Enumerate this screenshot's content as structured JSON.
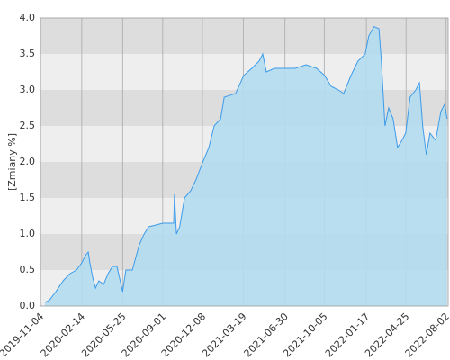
{
  "chart_data": {
    "type": "area",
    "y_label": "[Zmiany %]",
    "x": [
      "2019-11-15",
      "2019-11-26",
      "2019-12-12",
      "2019-12-30",
      "2020-01-16",
      "2020-02-01",
      "2020-02-14",
      "2020-02-23",
      "2020-03-01",
      "2020-03-05",
      "2020-03-12",
      "2020-03-19",
      "2020-03-27",
      "2020-04-08",
      "2020-04-19",
      "2020-04-30",
      "2020-05-11",
      "2020-05-25",
      "2020-06-02",
      "2020-06-18",
      "2020-07-05",
      "2020-07-17",
      "2020-07-28",
      "2020-08-12",
      "2020-09-01",
      "2020-09-28",
      "2020-09-30",
      "2020-10-05",
      "2020-10-13",
      "2020-10-25",
      "2020-11-09",
      "2020-11-22",
      "2020-12-09",
      "2020-12-24",
      "2021-01-06",
      "2021-01-22",
      "2021-01-31",
      "2021-02-28",
      "2021-03-20",
      "2021-04-09",
      "2021-04-27",
      "2021-05-06",
      "2021-05-15",
      "2021-06-04",
      "2021-06-29",
      "2021-07-25",
      "2021-08-21",
      "2021-09-16",
      "2021-10-06",
      "2021-10-22",
      "2021-11-09",
      "2021-11-22",
      "2021-12-10",
      "2021-12-27",
      "2022-01-14",
      "2022-01-23",
      "2022-02-05",
      "2022-02-17",
      "2022-02-23",
      "2022-03-04",
      "2022-03-13",
      "2022-03-24",
      "2022-04-04",
      "2022-04-15",
      "2022-04-24",
      "2022-05-05",
      "2022-05-19",
      "2022-05-28",
      "2022-06-05",
      "2022-06-14",
      "2022-06-23",
      "2022-07-07",
      "2022-07-20",
      "2022-07-29",
      "2022-08-04"
    ],
    "values": [
      0.05,
      0.08,
      0.2,
      0.35,
      0.45,
      0.5,
      0.6,
      0.7,
      0.75,
      0.6,
      0.4,
      0.25,
      0.35,
      0.3,
      0.45,
      0.55,
      0.55,
      0.2,
      0.5,
      0.5,
      0.85,
      1.0,
      1.1,
      1.12,
      1.15,
      1.15,
      1.55,
      1.0,
      1.1,
      1.5,
      1.6,
      1.75,
      2.0,
      2.2,
      2.5,
      2.6,
      2.9,
      2.95,
      3.2,
      3.3,
      3.4,
      3.5,
      3.25,
      3.3,
      3.3,
      3.3,
      3.35,
      3.3,
      3.2,
      3.05,
      3.0,
      2.95,
      3.2,
      3.4,
      3.5,
      3.75,
      3.88,
      3.85,
      3.4,
      2.5,
      2.75,
      2.6,
      2.2,
      2.3,
      2.4,
      2.9,
      3.0,
      3.1,
      2.5,
      2.1,
      2.4,
      2.3,
      2.7,
      2.8,
      2.6
    ],
    "color": "#3d9be9",
    "area_color": "#b3dcef",
    "xlim": [
      "2019-11-04",
      "2022-08-07"
    ],
    "xticks": [
      "2019-11-04",
      "2020-02-14",
      "2020-05-25",
      "2020-09-01",
      "2020-12-08",
      "2021-03-19",
      "2021-06-30",
      "2021-10-05",
      "2022-01-17",
      "2022-04-25",
      "2022-08-02"
    ],
    "ylim": [
      0,
      4
    ],
    "yticks": [
      {
        "value": 0,
        "label": "0.0"
      },
      {
        "value": 0.5,
        "label": "0.5"
      },
      {
        "value": 1,
        "label": "1.0"
      },
      {
        "value": 1.5,
        "label": "1.5"
      },
      {
        "value": 2,
        "label": "2.0"
      },
      {
        "value": 2.5,
        "label": "2.5"
      },
      {
        "value": 3,
        "label": "3.0"
      },
      {
        "value": 3.5,
        "label": "3.5"
      },
      {
        "value": 4,
        "label": "4.0"
      }
    ],
    "grid": true
  }
}
